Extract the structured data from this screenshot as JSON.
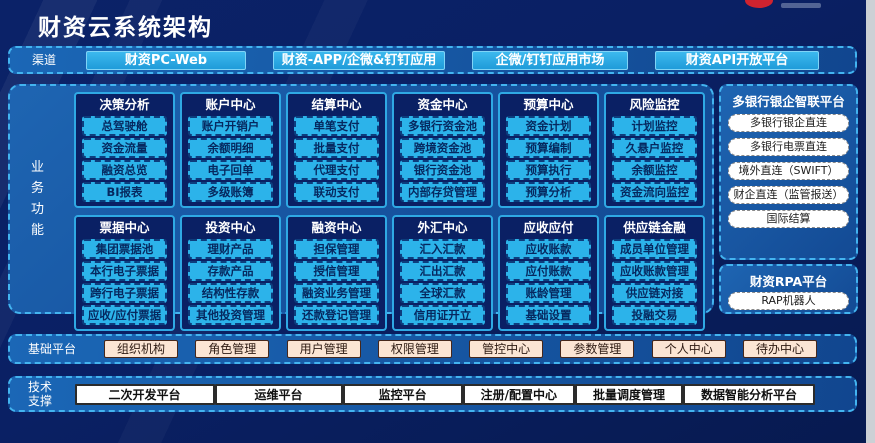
{
  "header": {
    "title": "财资云系统架构",
    "logo_mark_icon": "red-ellipse-logo"
  },
  "channels": {
    "label": "渠道",
    "items": [
      "财资PC-Web",
      "财资-APP/企微&钉钉应用",
      "企微/钉钉应用市场",
      "财资API开放平台"
    ]
  },
  "business": {
    "label": "业务功能",
    "modules": [
      {
        "title": "决策分析",
        "items": [
          "总驾驶舱",
          "资金流量",
          "融资总览",
          "BI报表"
        ]
      },
      {
        "title": "账户中心",
        "items": [
          "账户开销户",
          "余额明细",
          "电子回单",
          "多级账簿"
        ]
      },
      {
        "title": "结算中心",
        "items": [
          "单笔支付",
          "批量支付",
          "代理支付",
          "联动支付"
        ]
      },
      {
        "title": "资金中心",
        "items": [
          "多银行资金池",
          "跨境资金池",
          "银行资金池",
          "内部存贷管理"
        ]
      },
      {
        "title": "预算中心",
        "items": [
          "资金计划",
          "预算编制",
          "预算执行",
          "预算分析"
        ]
      },
      {
        "title": "风险监控",
        "items": [
          "计划监控",
          "久悬户监控",
          "余额监控",
          "资金流向监控"
        ]
      },
      {
        "title": "票据中心",
        "items": [
          "集团票据池",
          "本行电子票据",
          "跨行电子票据",
          "应收/应付票据"
        ]
      },
      {
        "title": "投资中心",
        "items": [
          "理财产品",
          "存款产品",
          "结构性存款",
          "其他投资管理"
        ]
      },
      {
        "title": "融资中心",
        "items": [
          "担保管理",
          "授信管理",
          "融资业务管理",
          "还款登记管理"
        ]
      },
      {
        "title": "外汇中心",
        "items": [
          "汇入汇款",
          "汇出汇款",
          "全球汇款",
          "信用证开立"
        ]
      },
      {
        "title": "应收应付",
        "items": [
          "应收账款",
          "应付账款",
          "账龄管理",
          "基础设置"
        ]
      },
      {
        "title": "供应链金融",
        "items": [
          "成员单位管理",
          "应收账款管理",
          "供应链对接",
          "投融交易"
        ]
      }
    ]
  },
  "right_panels": [
    {
      "title": "多银行银企智联平台",
      "items": [
        "多银行银企直连",
        "多银行电票直连",
        "境外直连（SWIFT）",
        "财企直连（监管报送）",
        "国际结算"
      ]
    },
    {
      "title": "财资RPA平台",
      "items": [
        "RAP机器人"
      ]
    }
  ],
  "base_platform": {
    "label": "基础平台",
    "items": [
      "组织机构",
      "角色管理",
      "用户管理",
      "权限管理",
      "管控中心",
      "参数管理",
      "个人中心",
      "待办中心"
    ]
  },
  "tech_support": {
    "label": "技术支撑",
    "items": [
      "二次开发平台",
      "运维平台",
      "监控平台",
      "注册/配置中心",
      "批量调度管理",
      "数据智能分析平台"
    ]
  },
  "colors": {
    "background_navy": "#0a2064",
    "panel_blue": "#1e65b2",
    "dashed_border": "#43b4f0",
    "item_cyan": "#2cb3ea",
    "card_navy": "#0a2064",
    "base_item_peach": "#fbe5d4",
    "logo_red": "#cf232f",
    "white_box": "#ffffff"
  }
}
